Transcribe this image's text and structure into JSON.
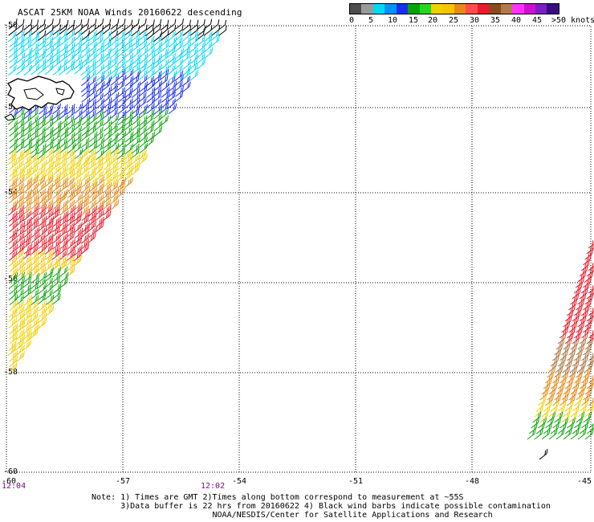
{
  "title": "ASCAT 25KM NOAA Winds 20160622 descending",
  "legend": {
    "colors": [
      "#4d4d4d",
      "#9a9a9a",
      "#00d8f2",
      "#0093f5",
      "#1a2ef0",
      "#08a308",
      "#26d426",
      "#f0d000",
      "#f5c400",
      "#e38a1a",
      "#ff4d4d",
      "#e81c2c",
      "#8a4a1e",
      "#b07a4a",
      "#ff33ff",
      "#cc11cc",
      "#7a20c0",
      "#3a0a80"
    ],
    "labels": [
      "0",
      "5",
      "10",
      "15",
      "20",
      "25",
      "30",
      "35",
      "40",
      "45",
      ">50 knots"
    ]
  },
  "axes": {
    "lat_labels": [
      "-50",
      "-52",
      "-54",
      "-56",
      "-58",
      "-60"
    ],
    "lon_labels": [
      "-57",
      "-54",
      "-51",
      "-48",
      "-45"
    ],
    "lon_start_label": "-60"
  },
  "times": [
    "12:04",
    "12:02"
  ],
  "notes": [
    "Note: 1) Times are GMT 2)Times along bottom correspond to measurement at ~55S",
    "      3)Data buffer is 22 hrs from 20160622 4) Black wind barbs indicate possible contamination",
    "                         NOAA/NESDIS/Center for Satellite Applications and Research"
  ]
}
